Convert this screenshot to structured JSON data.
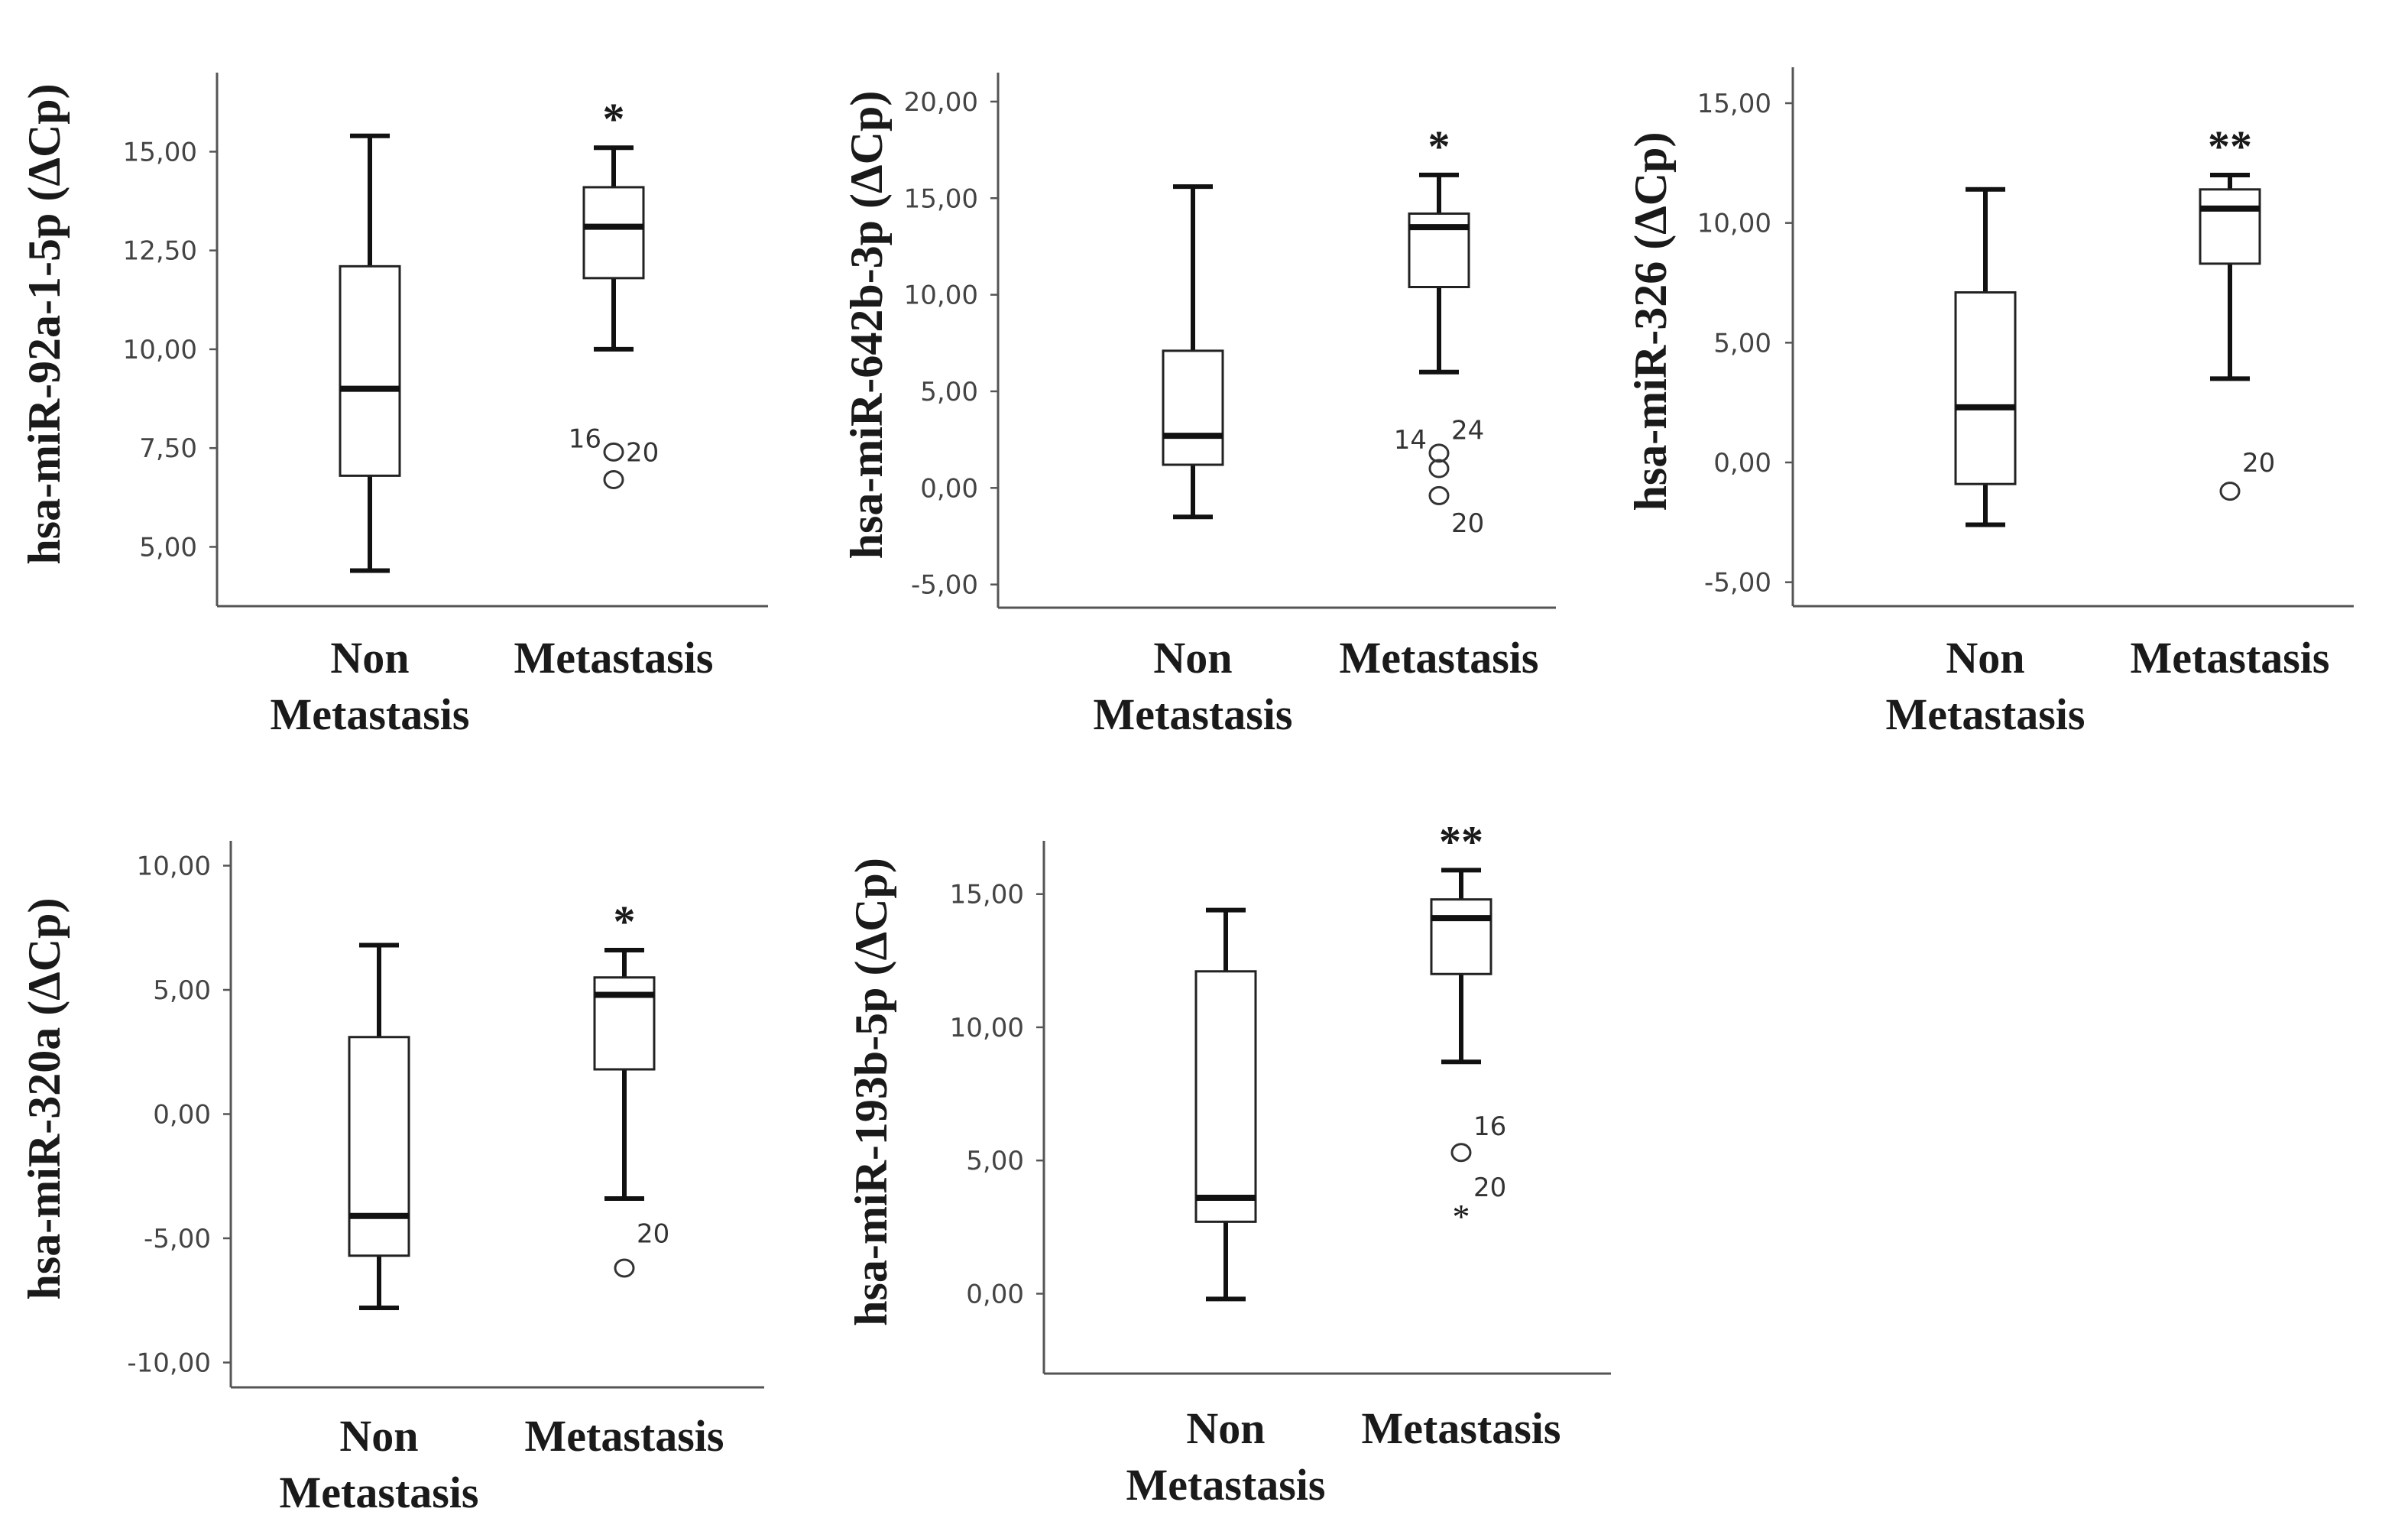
{
  "chart_data": [
    {
      "type": "boxplot",
      "ylabel": "hsa-miR-92a-1-5p (ΔCp)",
      "ylim": [
        3.5,
        17.0
      ],
      "yticks": [
        5.0,
        7.5,
        10.0,
        12.5,
        15.0
      ],
      "ytick_labels": [
        "5,00",
        "7,50",
        "10,00",
        "12,50",
        "15,00"
      ],
      "categories": [
        [
          "Non",
          "Metastasis"
        ],
        [
          "Metastasis"
        ]
      ],
      "boxes": [
        {
          "whisker_low": 4.4,
          "q1": 6.8,
          "median": 9.0,
          "q3": 12.1,
          "whisker_high": 15.4,
          "outliers": []
        },
        {
          "whisker_low": 10.0,
          "q1": 11.8,
          "median": 13.1,
          "q3": 14.1,
          "whisker_high": 15.1,
          "outliers": [
            {
              "value": 7.4,
              "label": "16",
              "marker": "circle",
              "label_side": "left"
            },
            {
              "value": 6.7,
              "label": "20",
              "marker": "circle",
              "label_side": "right",
              "label_value": 7.4
            }
          ],
          "significance": "*"
        }
      ]
    },
    {
      "type": "boxplot",
      "ylabel": "hsa-miR-642b-3p (ΔCp)",
      "ylim": [
        -6.2,
        21.5
      ],
      "yticks": [
        -5.0,
        0.0,
        5.0,
        10.0,
        15.0,
        20.0
      ],
      "ytick_labels": [
        "-5,00",
        "0,00",
        "5,00",
        "10,00",
        "15,00",
        "20,00"
      ],
      "categories": [
        [
          "Non",
          "Metastasis"
        ],
        [
          "Metastasis"
        ]
      ],
      "boxes": [
        {
          "whisker_low": -1.5,
          "q1": 1.2,
          "median": 2.7,
          "q3": 7.1,
          "whisker_high": 15.6,
          "outliers": []
        },
        {
          "whisker_low": 6.0,
          "q1": 10.4,
          "median": 13.5,
          "q3": 14.2,
          "whisker_high": 16.2,
          "outliers": [
            {
              "value": 1.8,
              "label": "14",
              "marker": "circle",
              "label_side": "left"
            },
            {
              "value": 1.0,
              "label": "24",
              "marker": "circle",
              "label_side": "right",
              "label_value": 3.0
            },
            {
              "value": -0.4,
              "label": "20",
              "marker": "circle",
              "label_side": "right",
              "label_value": -1.8
            }
          ],
          "significance": "*"
        }
      ]
    },
    {
      "type": "boxplot",
      "ylabel": "hsa-miR-326 (ΔCp)",
      "ylim": [
        -6.0,
        16.5
      ],
      "yticks": [
        -5.0,
        0.0,
        5.0,
        10.0,
        15.0
      ],
      "ytick_labels": [
        "-5,00",
        "0,00",
        "5,00",
        "10,00",
        "15,00"
      ],
      "categories": [
        [
          "Non",
          "Metastasis"
        ],
        [
          "Metastasis"
        ]
      ],
      "boxes": [
        {
          "whisker_low": -2.6,
          "q1": -0.9,
          "median": 2.3,
          "q3": 7.1,
          "whisker_high": 11.4,
          "outliers": []
        },
        {
          "whisker_low": 3.5,
          "q1": 8.3,
          "median": 10.6,
          "q3": 11.4,
          "whisker_high": 12.0,
          "outliers": [
            {
              "value": -1.2,
              "label": "20",
              "marker": "circle",
              "label_side": "right",
              "label_value": 0.0
            }
          ],
          "significance": "**"
        }
      ]
    },
    {
      "type": "boxplot",
      "ylabel": "hsa-miR-320a (ΔCp)",
      "ylim": [
        -11.0,
        11.0
      ],
      "yticks": [
        -10.0,
        -5.0,
        0.0,
        5.0,
        10.0
      ],
      "ytick_labels": [
        "-10,00",
        "-5,00",
        "0,00",
        "5,00",
        "10,00"
      ],
      "categories": [
        [
          "Non",
          "Metastasis"
        ],
        [
          "Metastasis"
        ]
      ],
      "boxes": [
        {
          "whisker_low": -7.8,
          "q1": -5.7,
          "median": -4.1,
          "q3": 3.1,
          "whisker_high": 6.8,
          "outliers": []
        },
        {
          "whisker_low": -3.4,
          "q1": 1.8,
          "median": 4.8,
          "q3": 5.5,
          "whisker_high": 6.6,
          "outliers": [
            {
              "value": -6.2,
              "label": "20",
              "marker": "circle",
              "label_side": "right",
              "label_value": -4.8
            }
          ],
          "significance": "*"
        }
      ]
    },
    {
      "type": "boxplot",
      "ylabel": "hsa-miR-193b-5p (ΔCp)",
      "ylim": [
        -3.0,
        17.0
      ],
      "yticks": [
        0.0,
        5.0,
        10.0,
        15.0
      ],
      "ytick_labels": [
        "0,00",
        "5,00",
        "10,00",
        "15,00"
      ],
      "categories": [
        [
          "Non",
          "Metastasis"
        ],
        [
          "Metastasis"
        ]
      ],
      "boxes": [
        {
          "whisker_low": -0.2,
          "q1": 2.7,
          "median": 3.6,
          "q3": 12.1,
          "whisker_high": 14.4,
          "outliers": []
        },
        {
          "whisker_low": 8.7,
          "q1": 12.0,
          "median": 14.1,
          "q3": 14.8,
          "whisker_high": 15.9,
          "outliers": [
            {
              "value": 5.3,
              "label": "16",
              "marker": "circle",
              "label_side": "right",
              "label_value": 6.3
            },
            {
              "value": 3.2,
              "label": "20",
              "marker": "star",
              "label_side": "right",
              "label_value": 4.0
            }
          ],
          "significance": "**"
        }
      ]
    }
  ]
}
